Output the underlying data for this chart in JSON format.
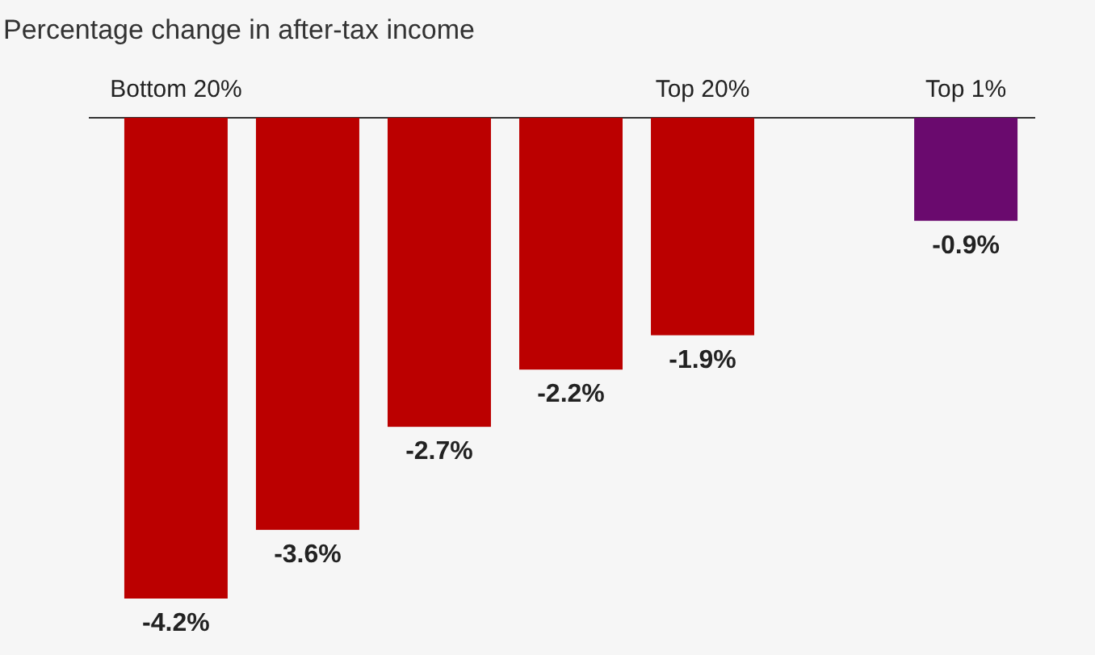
{
  "chart_data": {
    "type": "bar",
    "title": "Percentage change in after-tax income",
    "categories": [
      "Bottom 20%",
      null,
      null,
      null,
      "Top 20%",
      null,
      "Top 1%"
    ],
    "values": [
      -4.2,
      -3.6,
      -2.7,
      -2.2,
      -1.9,
      null,
      -0.9
    ],
    "colors": [
      "#bb0000",
      "#bb0000",
      "#bb0000",
      "#bb0000",
      "#bb0000",
      null,
      "#6a0a6e"
    ],
    "value_labels": [
      "-4.2%",
      "-3.6%",
      "-2.7%",
      "-2.2%",
      "-1.9%",
      null,
      "-0.9%"
    ]
  }
}
